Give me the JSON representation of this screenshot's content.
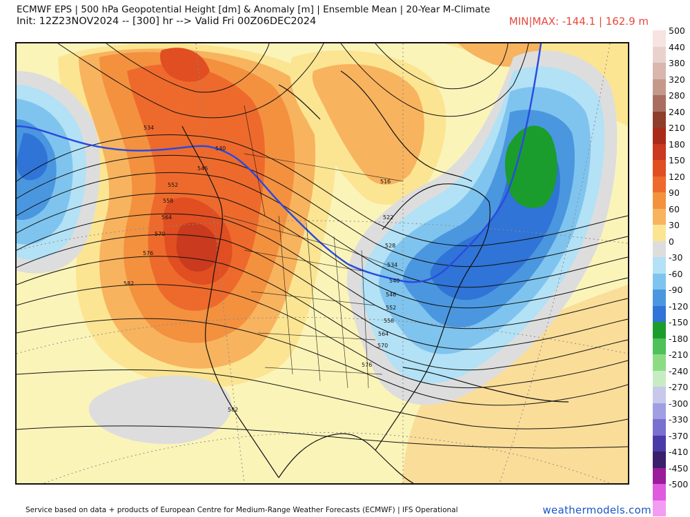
{
  "header": {
    "line1": "ECMWF EPS | 500 hPa Geopotential Height [dm] & Anomaly [m] | Ensemble Mean | 20-Year M-Climate",
    "line2": "Init: 12Z23NOV2024 -- [300] hr --> Valid Fri 00Z06DEC2024",
    "minmax": "MIN|MAX: -144.1 | 162.9 m"
  },
  "legend": {
    "items": [
      {
        "label": "500",
        "color": "#f7e3e0"
      },
      {
        "label": "440",
        "color": "#ead2cc"
      },
      {
        "label": "380",
        "color": "#d9b7ae"
      },
      {
        "label": "320",
        "color": "#c4998c"
      },
      {
        "label": "280",
        "color": "#a86f60"
      },
      {
        "label": "240",
        "color": "#8f3e2c"
      },
      {
        "label": "210",
        "color": "#a92c1b"
      },
      {
        "label": "180",
        "color": "#c93a1e"
      },
      {
        "label": "150",
        "color": "#e04e22"
      },
      {
        "label": "120",
        "color": "#ee6a2c"
      },
      {
        "label": "90",
        "color": "#f3913f"
      },
      {
        "label": "60",
        "color": "#f8b35e"
      },
      {
        "label": "30",
        "color": "#fbe593"
      },
      {
        "label": "0",
        "color": "#dddddd"
      },
      {
        "label": "-30",
        "color": "#b3e1f5"
      },
      {
        "label": "-60",
        "color": "#7fc4ee"
      },
      {
        "label": "-90",
        "color": "#4a97e0"
      },
      {
        "label": "-120",
        "color": "#2f74d6"
      },
      {
        "label": "-150",
        "color": "#1a9d2d"
      },
      {
        "label": "-180",
        "color": "#4ec158"
      },
      {
        "label": "-210",
        "color": "#8edb85"
      },
      {
        "label": "-240",
        "color": "#c8ecc1"
      },
      {
        "label": "-270",
        "color": "#c8c8ec"
      },
      {
        "label": "-300",
        "color": "#9f9fe2"
      },
      {
        "label": "-330",
        "color": "#7a70d0"
      },
      {
        "label": "-370",
        "color": "#4a3aa8"
      },
      {
        "label": "-410",
        "color": "#3a1f6a"
      },
      {
        "label": "-450",
        "color": "#9a1c9a"
      },
      {
        "label": "-500",
        "color": "#e05ae0"
      },
      {
        "label": "",
        "color": "#f39cf3"
      }
    ]
  },
  "contours": {
    "labels": [
      "534",
      "540",
      "546",
      "552",
      "558",
      "564",
      "570",
      "576",
      "582",
      "516",
      "522",
      "528",
      "534",
      "540",
      "546",
      "552",
      "558",
      "564",
      "570",
      "576",
      "582"
    ]
  },
  "footer": {
    "credit": "Service based on data + products of European Centre for Medium-Range Weather Forecasts (ECMWF) | IFS Operational",
    "brand": "weathermodels.com"
  }
}
